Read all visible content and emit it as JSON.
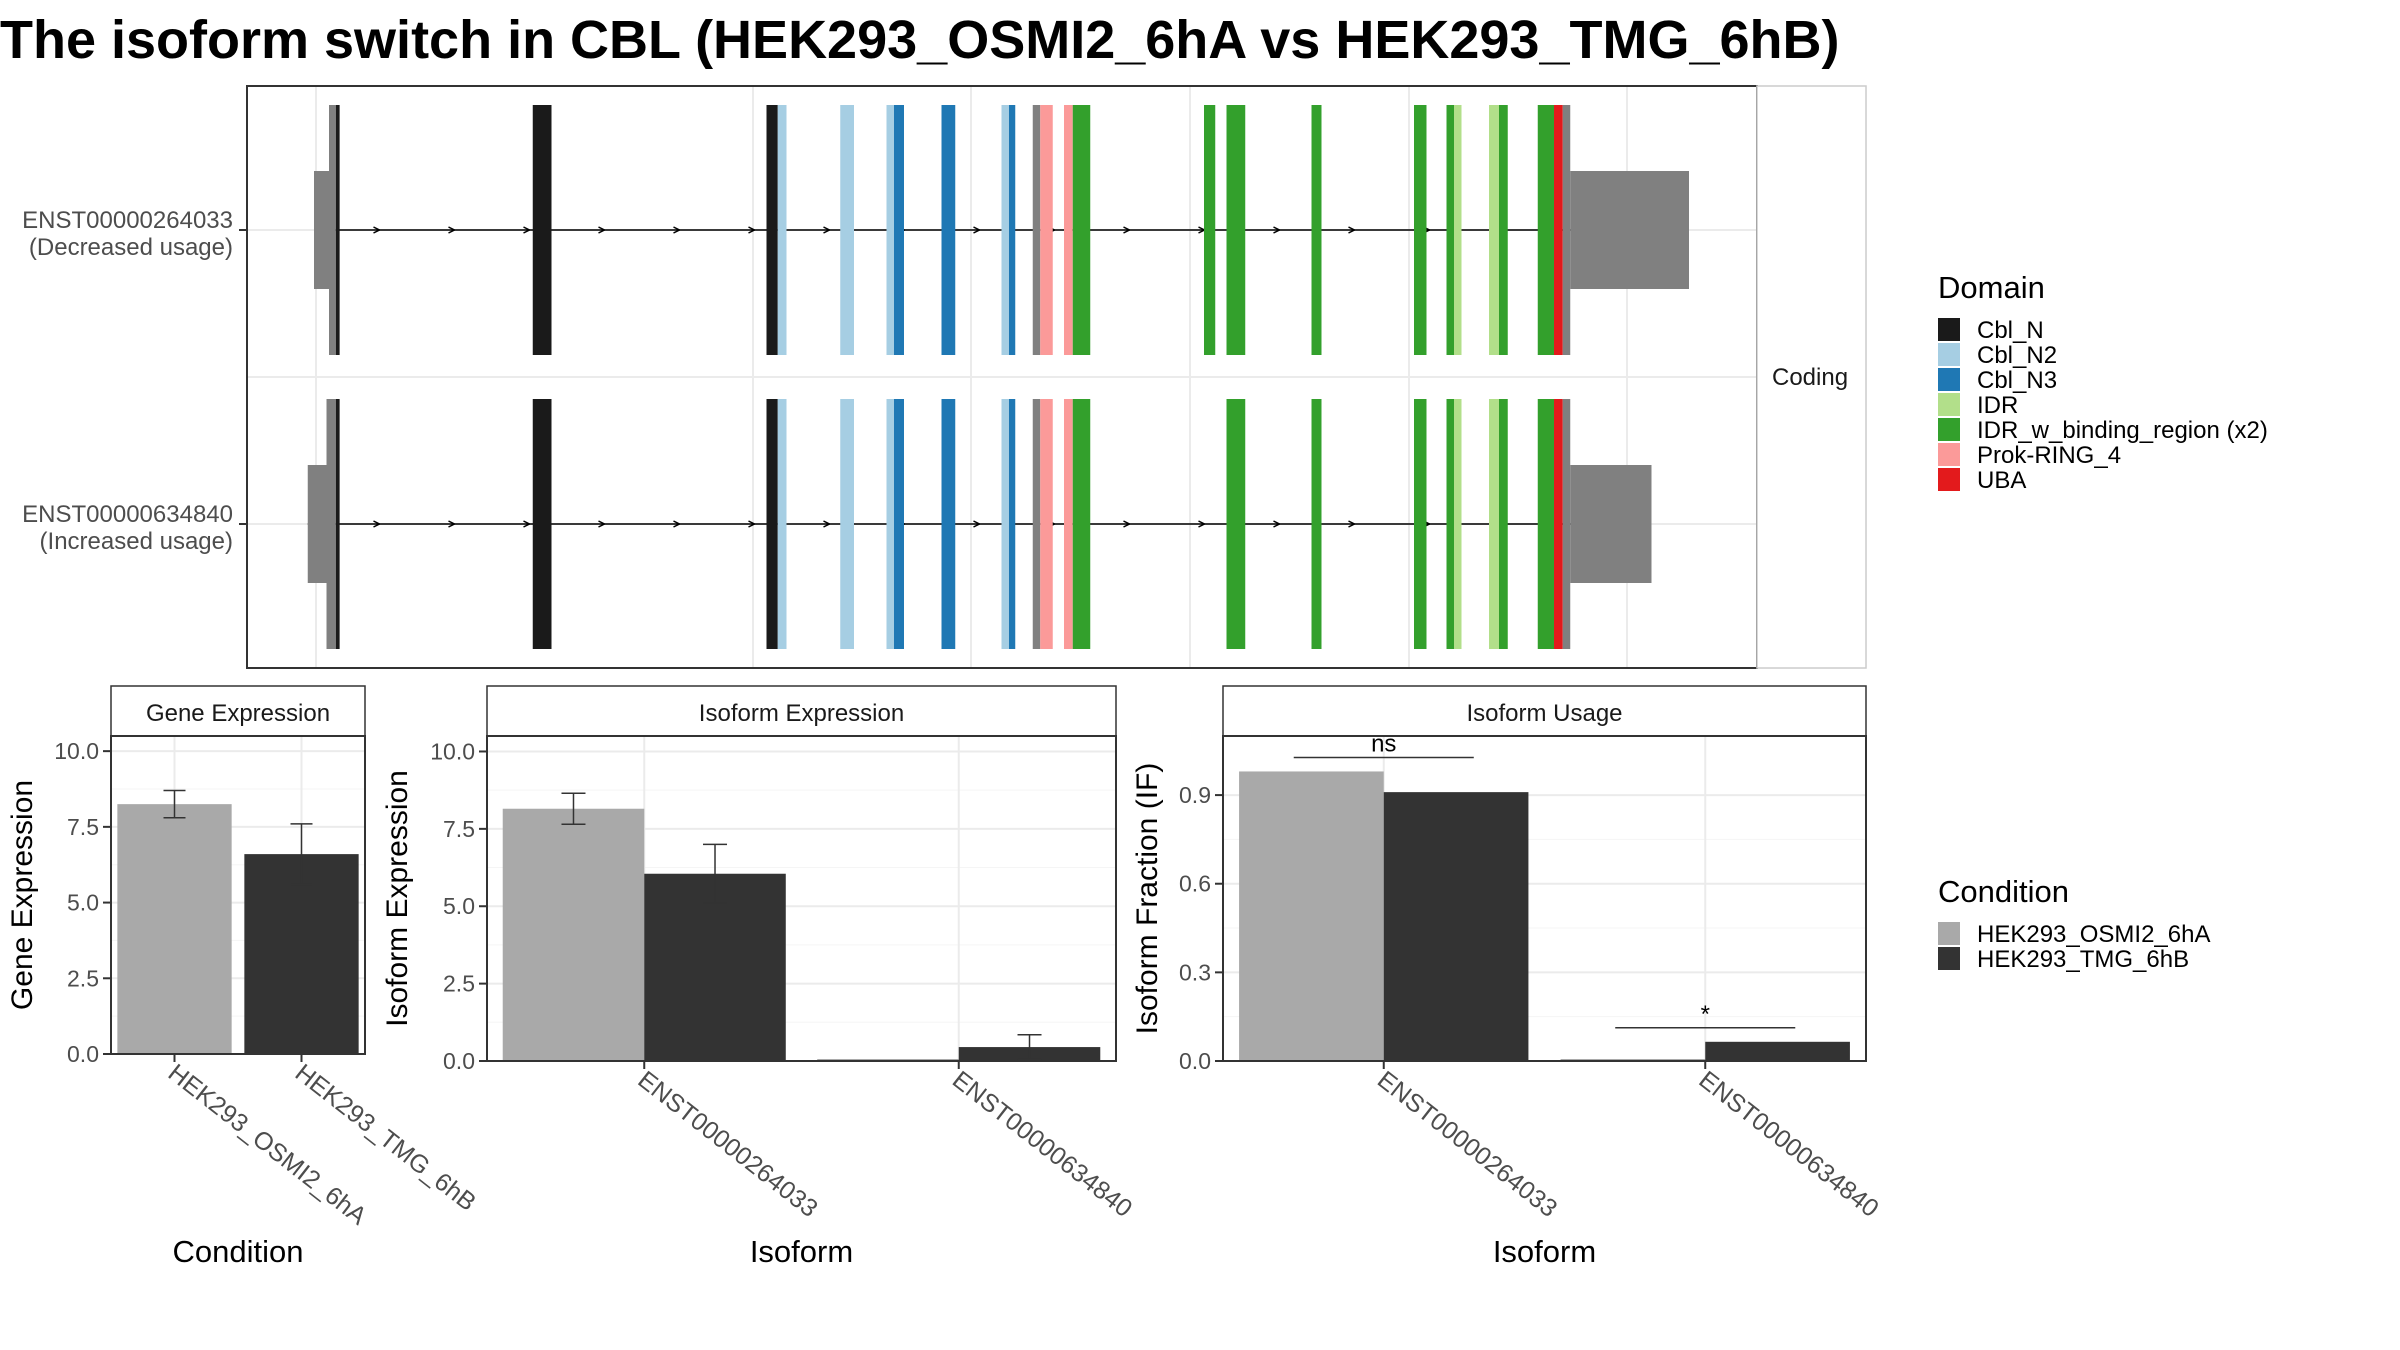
{
  "title": "The isoform switch in CBL (HEK293_OSMI2_6hA vs HEK293_TMG_6hB)",
  "colors": {
    "Cbl_N": "#1a1a1a",
    "Cbl_N2": "#a6cee3",
    "Cbl_N3": "#1f78b4",
    "IDR": "#b2df8a",
    "IDR_w_binding_region (x2)": "#33a02c",
    "Prok-RING_4": "#fb9a99",
    "UBA": "#e31a1c",
    "noncoding_exon": "#808080",
    "cond_a": "#a9a9a9",
    "cond_b": "#333333"
  },
  "chart_data": [
    {
      "type": "isoform_structure",
      "strip_label": "Coding",
      "transcripts": [
        {
          "id": "ENST00000264033",
          "annotation": "(Decreased usage)",
          "segments": [
            {
              "start": 0.0,
              "end": 1.2,
              "kind": "utr"
            },
            {
              "start": 1.2,
              "end": 1.75,
              "kind": "utr"
            },
            {
              "start": 1.75,
              "end": 2.05,
              "domain": "Cbl_N"
            },
            {
              "start": 17.5,
              "end": 19.0,
              "domain": "Cbl_N"
            },
            {
              "start": 36.2,
              "end": 37.1,
              "domain": "Cbl_N"
            },
            {
              "start": 37.1,
              "end": 37.8,
              "domain": "Cbl_N2"
            },
            {
              "start": 42.1,
              "end": 43.2,
              "domain": "Cbl_N2"
            },
            {
              "start": 45.8,
              "end": 46.4,
              "domain": "Cbl_N2"
            },
            {
              "start": 46.4,
              "end": 47.2,
              "domain": "Cbl_N3"
            },
            {
              "start": 50.2,
              "end": 51.3,
              "domain": "Cbl_N3"
            },
            {
              "start": 55.0,
              "end": 55.6,
              "domain": "Cbl_N2"
            },
            {
              "start": 55.6,
              "end": 56.1,
              "domain": "Cbl_N3"
            },
            {
              "start": 57.5,
              "end": 58.1,
              "kind": "utr"
            },
            {
              "start": 58.1,
              "end": 59.1,
              "domain": "Prok-RING_4"
            },
            {
              "start": 60.0,
              "end": 60.7,
              "domain": "Prok-RING_4"
            },
            {
              "start": 60.7,
              "end": 62.1,
              "domain": "IDR_w_binding_region (x2)"
            },
            {
              "start": 71.2,
              "end": 72.1,
              "domain": "IDR_w_binding_region (x2)"
            },
            {
              "start": 73.0,
              "end": 74.5,
              "domain": "IDR_w_binding_region (x2)"
            },
            {
              "start": 79.8,
              "end": 80.6,
              "domain": "IDR_w_binding_region (x2)"
            },
            {
              "start": 88.0,
              "end": 89.0,
              "domain": "IDR_w_binding_region (x2)"
            },
            {
              "start": 90.6,
              "end": 91.2,
              "domain": "IDR_w_binding_region (x2)"
            },
            {
              "start": 91.2,
              "end": 91.8,
              "domain": "IDR"
            },
            {
              "start": 94.0,
              "end": 94.8,
              "domain": "IDR"
            },
            {
              "start": 94.8,
              "end": 95.5,
              "domain": "IDR_w_binding_region (x2)"
            },
            {
              "start": 97.9,
              "end": 99.2,
              "domain": "IDR_w_binding_region (x2)"
            },
            {
              "start": 99.2,
              "end": 99.9,
              "domain": "UBA"
            },
            {
              "start": 99.9,
              "end": 100.5,
              "kind": "utr"
            },
            {
              "start": 100.5,
              "end": 110.0,
              "kind": "utr"
            }
          ]
        },
        {
          "id": "ENST00000634840",
          "annotation": "(Increased usage)",
          "segments": [
            {
              "start": -0.5,
              "end": 1.0,
              "kind": "utr"
            },
            {
              "start": 1.0,
              "end": 1.75,
              "kind": "utr"
            },
            {
              "start": 1.75,
              "end": 2.05,
              "domain": "Cbl_N"
            },
            {
              "start": 17.5,
              "end": 19.0,
              "domain": "Cbl_N"
            },
            {
              "start": 36.2,
              "end": 37.1,
              "domain": "Cbl_N"
            },
            {
              "start": 37.1,
              "end": 37.8,
              "domain": "Cbl_N2"
            },
            {
              "start": 42.1,
              "end": 43.2,
              "domain": "Cbl_N2"
            },
            {
              "start": 45.8,
              "end": 46.4,
              "domain": "Cbl_N2"
            },
            {
              "start": 46.4,
              "end": 47.2,
              "domain": "Cbl_N3"
            },
            {
              "start": 50.2,
              "end": 51.3,
              "domain": "Cbl_N3"
            },
            {
              "start": 55.0,
              "end": 55.6,
              "domain": "Cbl_N2"
            },
            {
              "start": 55.6,
              "end": 56.1,
              "domain": "Cbl_N3"
            },
            {
              "start": 57.5,
              "end": 58.1,
              "kind": "utr"
            },
            {
              "start": 58.1,
              "end": 59.1,
              "domain": "Prok-RING_4"
            },
            {
              "start": 60.0,
              "end": 60.7,
              "domain": "Prok-RING_4"
            },
            {
              "start": 60.7,
              "end": 62.1,
              "domain": "IDR_w_binding_region (x2)"
            },
            {
              "start": 73.0,
              "end": 74.5,
              "domain": "IDR_w_binding_region (x2)"
            },
            {
              "start": 79.8,
              "end": 80.6,
              "domain": "IDR_w_binding_region (x2)"
            },
            {
              "start": 88.0,
              "end": 89.0,
              "domain": "IDR_w_binding_region (x2)"
            },
            {
              "start": 90.6,
              "end": 91.2,
              "domain": "IDR_w_binding_region (x2)"
            },
            {
              "start": 91.2,
              "end": 91.8,
              "domain": "IDR"
            },
            {
              "start": 94.0,
              "end": 94.8,
              "domain": "IDR"
            },
            {
              "start": 94.8,
              "end": 95.5,
              "domain": "IDR_w_binding_region (x2)"
            },
            {
              "start": 97.9,
              "end": 99.2,
              "domain": "IDR_w_binding_region (x2)"
            },
            {
              "start": 99.2,
              "end": 99.9,
              "domain": "UBA"
            },
            {
              "start": 99.9,
              "end": 100.5,
              "kind": "utr"
            },
            {
              "start": 100.5,
              "end": 107.0,
              "kind": "utr"
            }
          ]
        }
      ]
    },
    {
      "type": "bar",
      "title": "Gene Expression",
      "xlabel": "Condition",
      "ylabel": "Gene Expression",
      "ylim": [
        0,
        10.5
      ],
      "yticks": [
        "0.0",
        "2.5",
        "5.0",
        "7.5",
        "10.0"
      ],
      "categories": [
        "HEK293_OSMI2_6hA",
        "HEK293_TMG_6hB"
      ],
      "values": [
        8.25,
        6.6
      ],
      "errors": [
        0.45,
        1.0
      ],
      "series_colors": [
        "#a9a9a9",
        "#333333"
      ]
    },
    {
      "type": "bar",
      "title": "Isoform Expression",
      "xlabel": "Isoform",
      "ylabel": "Isoform Expression",
      "ylim": [
        0,
        10.5
      ],
      "yticks": [
        "0.0",
        "2.5",
        "5.0",
        "7.5",
        "10.0"
      ],
      "categories": [
        "ENST00000264033",
        "ENST00000634840"
      ],
      "series": [
        {
          "name": "HEK293_OSMI2_6hA",
          "values": [
            8.15,
            0.02
          ],
          "errors": [
            0.5,
            0.0
          ]
        },
        {
          "name": "HEK293_TMG_6hB",
          "values": [
            6.05,
            0.45
          ],
          "errors": [
            0.95,
            0.4
          ]
        }
      ]
    },
    {
      "type": "bar",
      "title": "Isoform Usage",
      "xlabel": "Isoform",
      "ylabel": "Isoform Fraction (IF)",
      "ylim": [
        0,
        1.1
      ],
      "yticks": [
        "0.0",
        "0.3",
        "0.6",
        "0.9"
      ],
      "categories": [
        "ENST00000264033",
        "ENST00000634840"
      ],
      "series": [
        {
          "name": "HEK293_OSMI2_6hA",
          "values": [
            0.98,
            0.0
          ]
        },
        {
          "name": "HEK293_TMG_6hB",
          "values": [
            0.91,
            0.065
          ]
        }
      ],
      "significance": [
        "ns",
        "*"
      ]
    }
  ],
  "legends": {
    "domain": {
      "title": "Domain",
      "items": [
        "Cbl_N",
        "Cbl_N2",
        "Cbl_N3",
        "IDR",
        "IDR_w_binding_region (x2)",
        "Prok-RING_4",
        "UBA"
      ]
    },
    "condition": {
      "title": "Condition",
      "items": [
        "HEK293_OSMI2_6hA",
        "HEK293_TMG_6hB"
      ]
    }
  }
}
